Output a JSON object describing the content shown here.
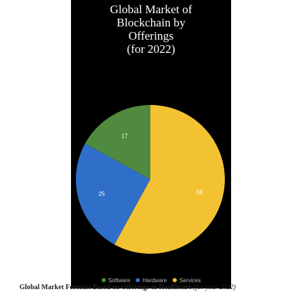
{
  "chart_data": {
    "type": "pie",
    "title_lines": [
      "Global Market of",
      "Blockchain by",
      "Offerings",
      "(for 2022)"
    ],
    "categories": [
      "Software",
      "Hardware",
      "Services"
    ],
    "values": [
      17,
      25,
      58
    ],
    "colors": [
      "#4f8a3f",
      "#2f6fc9",
      "#f2c232"
    ],
    "legend_position": "bottom"
  },
  "caption": {
    "main": "Global Market Forecast Based on Offerings in Healthcare",
    "note": "(for year 2022)"
  }
}
